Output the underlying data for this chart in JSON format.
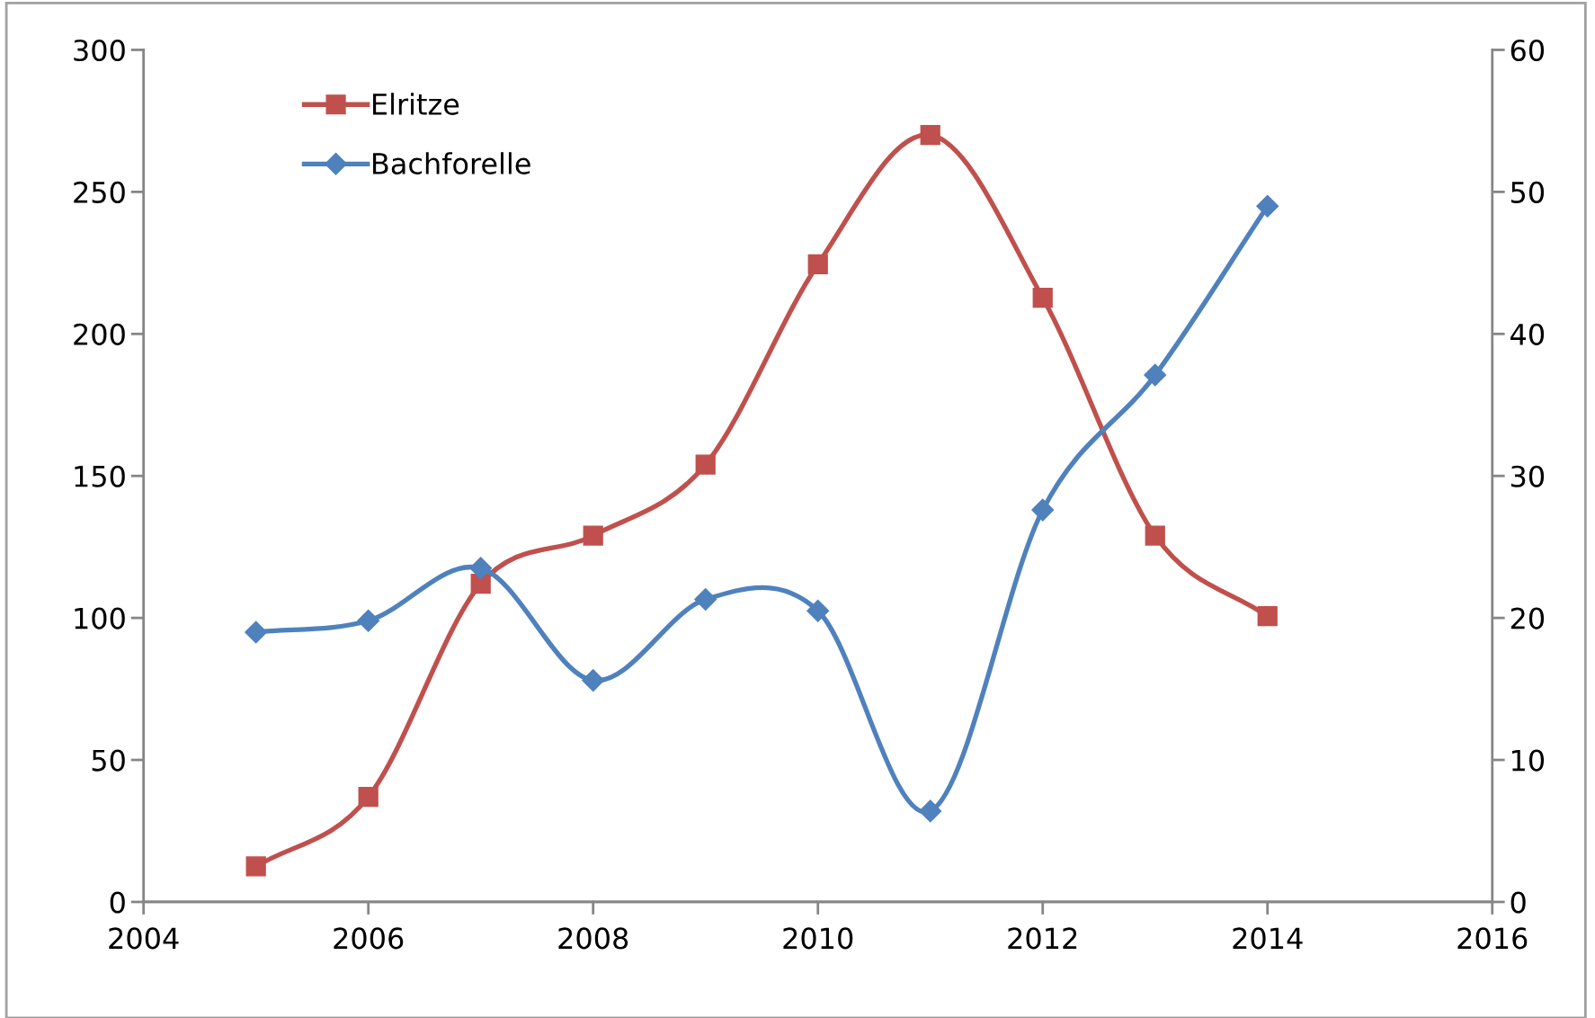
{
  "chart_data": {
    "type": "line",
    "x": [
      2005,
      2006,
      2007,
      2008,
      2009,
      2010,
      2011,
      2012,
      2013,
      2014
    ],
    "series": [
      {
        "name": "Elritze",
        "color": "#c0504d",
        "marker": "square",
        "values": [
          12.5,
          37,
          112,
          129,
          154,
          224.5,
          270,
          212.7,
          129,
          100.6
        ]
      },
      {
        "name": "Bachforelle",
        "color": "#4f81bd",
        "marker": "diamond",
        "axis": "y2",
        "values": [
          19.0,
          19.8,
          23.5,
          15.6,
          21.3,
          20.5,
          6.4,
          27.6,
          37.1,
          49.0
        ]
      }
    ],
    "xlim": [
      2004,
      2016
    ],
    "xticks": [
      2004,
      2006,
      2008,
      2010,
      2012,
      2014,
      2016
    ],
    "ylim": [
      0,
      300
    ],
    "yticks": [
      0,
      50,
      100,
      150,
      200,
      250,
      300
    ],
    "y2lim": [
      0,
      60
    ],
    "y2ticks": [
      0,
      10,
      20,
      30,
      40,
      50,
      60
    ],
    "grid": false,
    "legend": "top left",
    "line_style": "solid"
  }
}
